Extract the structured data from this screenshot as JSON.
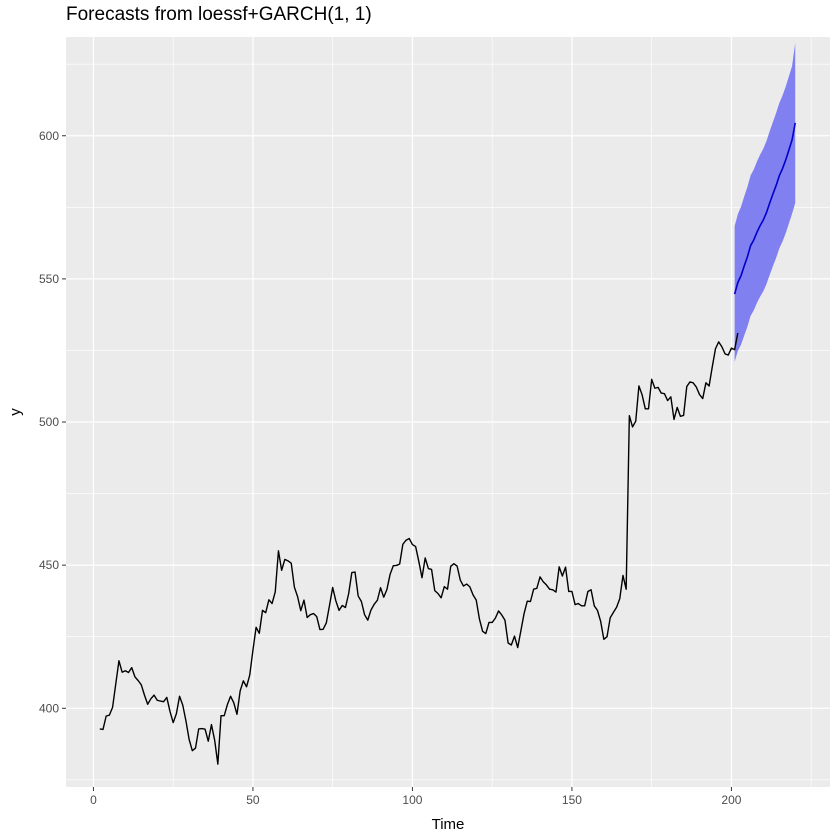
{
  "chart_data": {
    "type": "line",
    "title": "Forecasts from loessf+GARCH(1, 1)",
    "xlabel": "Time",
    "ylabel": "y",
    "xlim": [
      -8.6,
      230.9
    ],
    "ylim": [
      372.5,
      634.5
    ],
    "x_ticks": [
      0,
      50,
      100,
      150,
      200
    ],
    "y_ticks": [
      400,
      450,
      500,
      550,
      600
    ],
    "grid": true,
    "colors": {
      "panel": "#ebebeb",
      "grid": "#ffffff",
      "history_line": "#000000",
      "forecast_line": "#0000cc",
      "interval_band": "#8080f0"
    },
    "series": [
      {
        "x_start": 2,
        "values": [
          392.8,
          392.6,
          397.3,
          397.6,
          400.3,
          408.5,
          416.6,
          412.6,
          413.1,
          412.5,
          414.2,
          411.0,
          409.7,
          408.2,
          404.6,
          401.4,
          403.3,
          404.6,
          402.8,
          402.5,
          402.3,
          403.8,
          398.9,
          395.0,
          398.1,
          404.2,
          401.1,
          395.6,
          389.1,
          385.2,
          386.1,
          392.8,
          392.9,
          392.7,
          388.5,
          394.3,
          388.9,
          380.5,
          397.4,
          397.4,
          401.3,
          404.2,
          401.9,
          397.9,
          406.1,
          409.6,
          407.5,
          411.6,
          420.3,
          428.3,
          426.2,
          434.2,
          433.4,
          437.9,
          436.6,
          440.7,
          455.0,
          448.2,
          452.0,
          451.5,
          450.7,
          442.3,
          439.0,
          434.1,
          437.8,
          431.7,
          432.7,
          433.1,
          432.0,
          427.5,
          427.6,
          429.8,
          435.9,
          442.2,
          437.5,
          434.2,
          435.9,
          435.2,
          440.0,
          447.4,
          447.6,
          439.2,
          437.3,
          432.7,
          430.8,
          434.3,
          436.3,
          437.7,
          442.1,
          438.8,
          441.5,
          446.8,
          449.8,
          449.9,
          450.4,
          457.3,
          458.7,
          459.3,
          457.2,
          456.5,
          451.3,
          445.6,
          452.5,
          448.8,
          448.5,
          441.1,
          440.1,
          438.6,
          442.5,
          441.6,
          449.6,
          450.5,
          449.7,
          444.8,
          442.7,
          443.4,
          442.4,
          439.6,
          437.8,
          431.2,
          426.9,
          426.1,
          430.0,
          430.0,
          431.5,
          434.0,
          432.6,
          430.8,
          422.8,
          422.1,
          425.2,
          421.2,
          427.1,
          433.1,
          437.4,
          437.3,
          441.6,
          441.9,
          445.9,
          444.2,
          443.1,
          441.6,
          441.4,
          440.6,
          449.4,
          446.2,
          449.3,
          440.8,
          440.8,
          436.2,
          436.6,
          435.8,
          435.8,
          440.8,
          441.4,
          435.8,
          434.2,
          430.4,
          424.1,
          425.0,
          431.6,
          433.5,
          435.3,
          438.3,
          446.4,
          441.6,
          502.2,
          498.3,
          500.3,
          512.6,
          509.5,
          504.6,
          504.6,
          514.9,
          511.8,
          512.1,
          510.1,
          509.9,
          507.5,
          508.8,
          500.9,
          505.1,
          502.0,
          502.3,
          512.4,
          514.0,
          513.7,
          512.2,
          509.6,
          508.2,
          513.7,
          512.6,
          519.3,
          525.6,
          528.0,
          526.3,
          523.8,
          523.4,
          525.8,
          525.3,
          531.1
        ]
      },
      {
        "x_start": 201,
        "values": [
          544.7,
          548.7,
          551.1,
          554.5,
          557.7,
          561.6,
          563.6,
          566.3,
          568.6,
          570.6,
          573.2,
          576.5,
          579.6,
          582.6,
          586.0,
          588.5,
          591.5,
          595.0,
          598.5,
          604.5
        ],
        "lower": [
          521.0,
          524.8,
          527.0,
          530.2,
          533.3,
          537.1,
          539.0,
          541.6,
          543.8,
          545.7,
          548.2,
          551.4,
          554.4,
          557.3,
          560.6,
          563.0,
          565.9,
          569.3,
          572.7,
          576.5
        ],
        "upper": [
          568.4,
          572.6,
          575.2,
          578.8,
          582.1,
          586.1,
          588.2,
          591.0,
          593.4,
          595.5,
          598.2,
          601.6,
          604.8,
          607.9,
          611.4,
          614.0,
          617.1,
          620.7,
          624.3,
          632.5
        ]
      }
    ]
  }
}
